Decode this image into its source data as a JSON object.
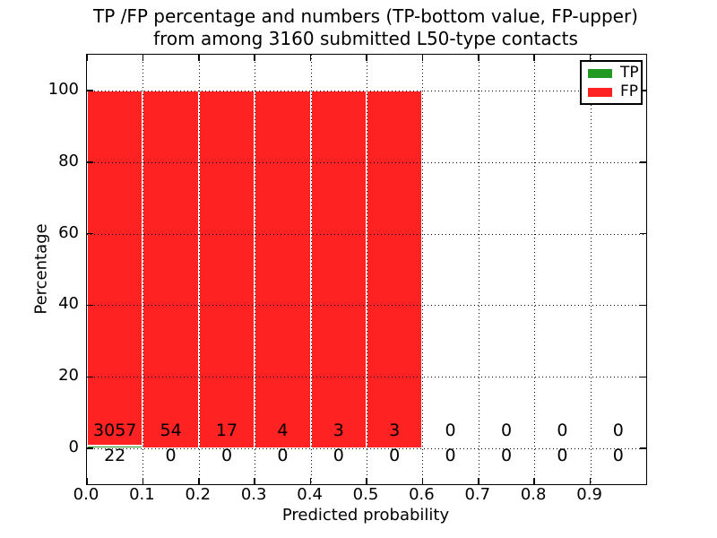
{
  "title": {
    "line1": "TP /FP percentage and numbers (TP-bottom value, FP-upper)",
    "line2": "from among 3160 submitted L50-type contacts"
  },
  "axes": {
    "xlabel": "Predicted probability",
    "ylabel": "Percentage",
    "x_tick_labels": [
      "0.0",
      "0.1",
      "0.2",
      "0.3",
      "0.4",
      "0.5",
      "0.6",
      "0.7",
      "0.8",
      "0.9"
    ],
    "x_tick_values": [
      0.0,
      0.1,
      0.2,
      0.3,
      0.4,
      0.5,
      0.6,
      0.7,
      0.8,
      0.9
    ],
    "y_tick_labels": [
      "0",
      "20",
      "40",
      "60",
      "80",
      "100"
    ],
    "y_tick_values": [
      0,
      20,
      40,
      60,
      80,
      100
    ]
  },
  "legend": {
    "entries": [
      {
        "label": "TP",
        "color": "#229922"
      },
      {
        "label": "FP",
        "color": "#fe2222"
      }
    ]
  },
  "colors": {
    "tp": "#229922",
    "fp": "#fe2222",
    "bar_edge": "#ffffff",
    "grid": "#000000",
    "text": "#000000"
  },
  "chart_data": {
    "type": "bar",
    "stacked": true,
    "title": "TP /FP percentage and numbers (TP-bottom value, FP-upper) from among 3160 submitted L50-type contacts",
    "xlabel": "Predicted probability",
    "ylabel": "Percentage",
    "xlim": [
      0.0,
      1.0
    ],
    "ylim": [
      -10,
      110
    ],
    "grid": "dotted both axes, drawn above bars",
    "legend_position": "upper right",
    "total_submitted": 3160,
    "bin_edges": [
      0.0,
      0.1,
      0.2,
      0.3,
      0.4,
      0.5,
      0.6,
      0.7,
      0.8,
      0.9,
      1.0
    ],
    "bin_centers": [
      0.05,
      0.15,
      0.25,
      0.35,
      0.45,
      0.55,
      0.65,
      0.75,
      0.85,
      0.95
    ],
    "series": [
      {
        "name": "TP",
        "counts": [
          22,
          0,
          0,
          0,
          0,
          0,
          0,
          0,
          0,
          0
        ],
        "percentages": [
          0.71,
          0,
          0,
          0,
          0,
          0,
          0,
          0,
          0,
          0
        ]
      },
      {
        "name": "FP",
        "counts": [
          3057,
          54,
          17,
          4,
          3,
          3,
          0,
          0,
          0,
          0
        ],
        "percentages": [
          99.29,
          100,
          100,
          100,
          100,
          100,
          0,
          0,
          0,
          0
        ]
      }
    ],
    "annotations": "FP count printed inside bar just above axis; TP count printed below the zero line in each bin"
  }
}
